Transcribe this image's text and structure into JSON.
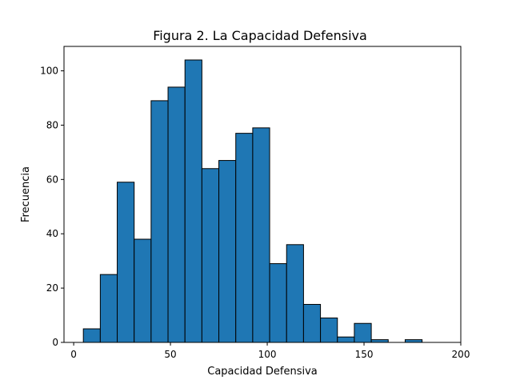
{
  "chart_data": {
    "type": "bar",
    "title": "Figura 2. La Capacidad Defensiva",
    "xlabel": "Capacidad Defensiva",
    "ylabel": "Frecuencia",
    "xlim": [
      -5,
      200
    ],
    "ylim": [
      0,
      109
    ],
    "xticks": [
      0,
      50,
      100,
      150,
      200
    ],
    "yticks": [
      0,
      20,
      40,
      60,
      80,
      100
    ],
    "bins": [
      {
        "x0": 5.0,
        "x1": 13.75,
        "count": 5
      },
      {
        "x0": 13.75,
        "x1": 22.5,
        "count": 25
      },
      {
        "x0": 22.5,
        "x1": 31.25,
        "count": 59
      },
      {
        "x0": 31.25,
        "x1": 40.0,
        "count": 38
      },
      {
        "x0": 40.0,
        "x1": 48.75,
        "count": 89
      },
      {
        "x0": 48.75,
        "x1": 57.5,
        "count": 94
      },
      {
        "x0": 57.5,
        "x1": 66.25,
        "count": 104
      },
      {
        "x0": 66.25,
        "x1": 75.0,
        "count": 64
      },
      {
        "x0": 75.0,
        "x1": 83.75,
        "count": 67
      },
      {
        "x0": 83.75,
        "x1": 92.5,
        "count": 77
      },
      {
        "x0": 92.5,
        "x1": 101.25,
        "count": 79
      },
      {
        "x0": 101.25,
        "x1": 110.0,
        "count": 29
      },
      {
        "x0": 110.0,
        "x1": 118.75,
        "count": 36
      },
      {
        "x0": 118.75,
        "x1": 127.5,
        "count": 14
      },
      {
        "x0": 127.5,
        "x1": 136.25,
        "count": 9
      },
      {
        "x0": 136.25,
        "x1": 145.0,
        "count": 2
      },
      {
        "x0": 145.0,
        "x1": 153.75,
        "count": 7
      },
      {
        "x0": 153.75,
        "x1": 162.5,
        "count": 1
      },
      {
        "x0": 162.5,
        "x1": 171.25,
        "count": 0
      },
      {
        "x0": 171.25,
        "x1": 180.0,
        "count": 1
      }
    ],
    "bar_color": "#1f77b4",
    "edge_color": "#000000",
    "grid": false,
    "legend": "none"
  }
}
